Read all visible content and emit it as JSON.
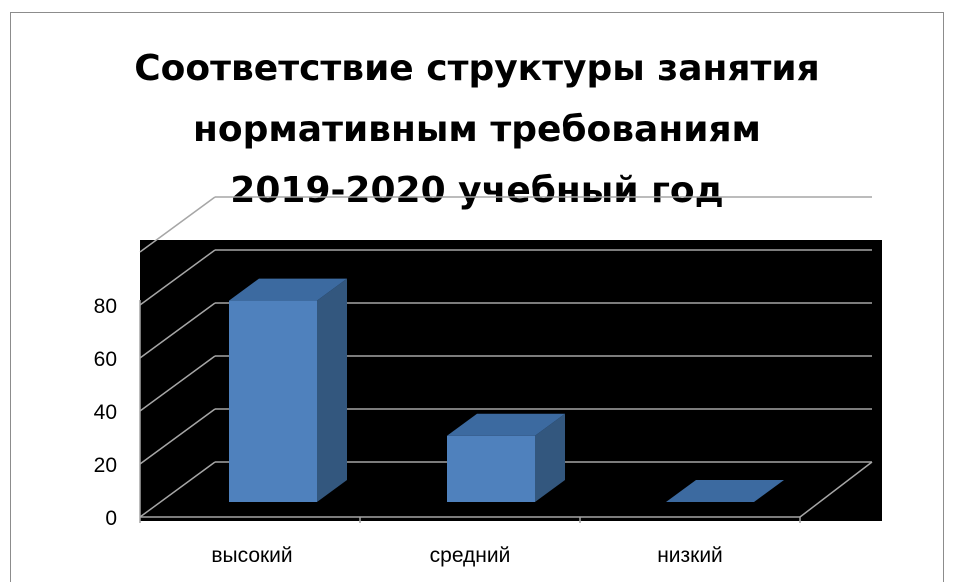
{
  "chart_data": {
    "type": "bar",
    "title_lines": [
      "Соответствие структуры занятия",
      "нормативным требованиям",
      "2019-2020 учебный год"
    ],
    "categories": [
      "высокий",
      "средний",
      "низкий"
    ],
    "values": [
      76,
      25,
      0
    ],
    "y_ticks": [
      "0",
      "20",
      "40",
      "60",
      "80"
    ],
    "ylim": [
      0,
      100
    ],
    "grid": true,
    "style": "3d-column",
    "colors": {
      "bar_front": "#4f81bd",
      "bar_top": "#3c6aa0",
      "bar_side": "#33577e",
      "plot_background": "#000000",
      "gridline": "#a6a6a6"
    }
  }
}
